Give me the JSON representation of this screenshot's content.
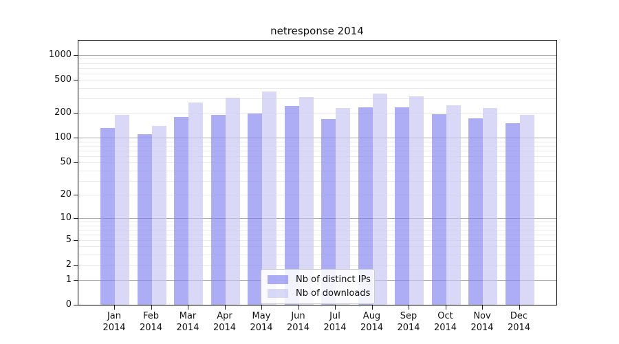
{
  "title": "netresponse 2014",
  "chart_data": {
    "type": "bar",
    "title": "netresponse 2014",
    "categories": [
      [
        "Jan",
        "2014"
      ],
      [
        "Feb",
        "2014"
      ],
      [
        "Mar",
        "2014"
      ],
      [
        "Apr",
        "2014"
      ],
      [
        "May",
        "2014"
      ],
      [
        "Jun",
        "2014"
      ],
      [
        "Jul",
        "2014"
      ],
      [
        "Aug",
        "2014"
      ],
      [
        "Sep",
        "2014"
      ],
      [
        "Oct",
        "2014"
      ],
      [
        "Nov",
        "2014"
      ],
      [
        "Dec",
        "2014"
      ]
    ],
    "series": [
      {
        "name": "Nb of distinct IPs",
        "color": "#8282f0",
        "fill_opacity": 0.66,
        "values": [
          132,
          112,
          179,
          190,
          196,
          245,
          168,
          233,
          236,
          195,
          173,
          150
        ]
      },
      {
        "name": "Nb of downloads",
        "color": "#c5c5f3",
        "fill_opacity": 0.66,
        "values": [
          191,
          139,
          268,
          308,
          363,
          310,
          230,
          345,
          320,
          248,
          230,
          189
        ]
      }
    ],
    "xlabel": "",
    "ylabel": "",
    "y_axis": {
      "scale": "symlog (log1p)",
      "tick_values": [
        0,
        1,
        2,
        5,
        10,
        20,
        50,
        100,
        200,
        500,
        1000
      ],
      "ylim": [
        0,
        1485
      ],
      "major_grid_values": [
        1,
        10,
        100,
        1000
      ]
    },
    "grid": {
      "enabled": true,
      "major_color": "#a8a8a8",
      "minor_color": "#e9e9e9"
    },
    "legend": {
      "position": "bottom-center",
      "entries": [
        "Nb of distinct IPs",
        "Nb of downloads"
      ]
    },
    "colors": {
      "background": "#ffffff",
      "axis": "#000000",
      "text": "#111111"
    }
  }
}
